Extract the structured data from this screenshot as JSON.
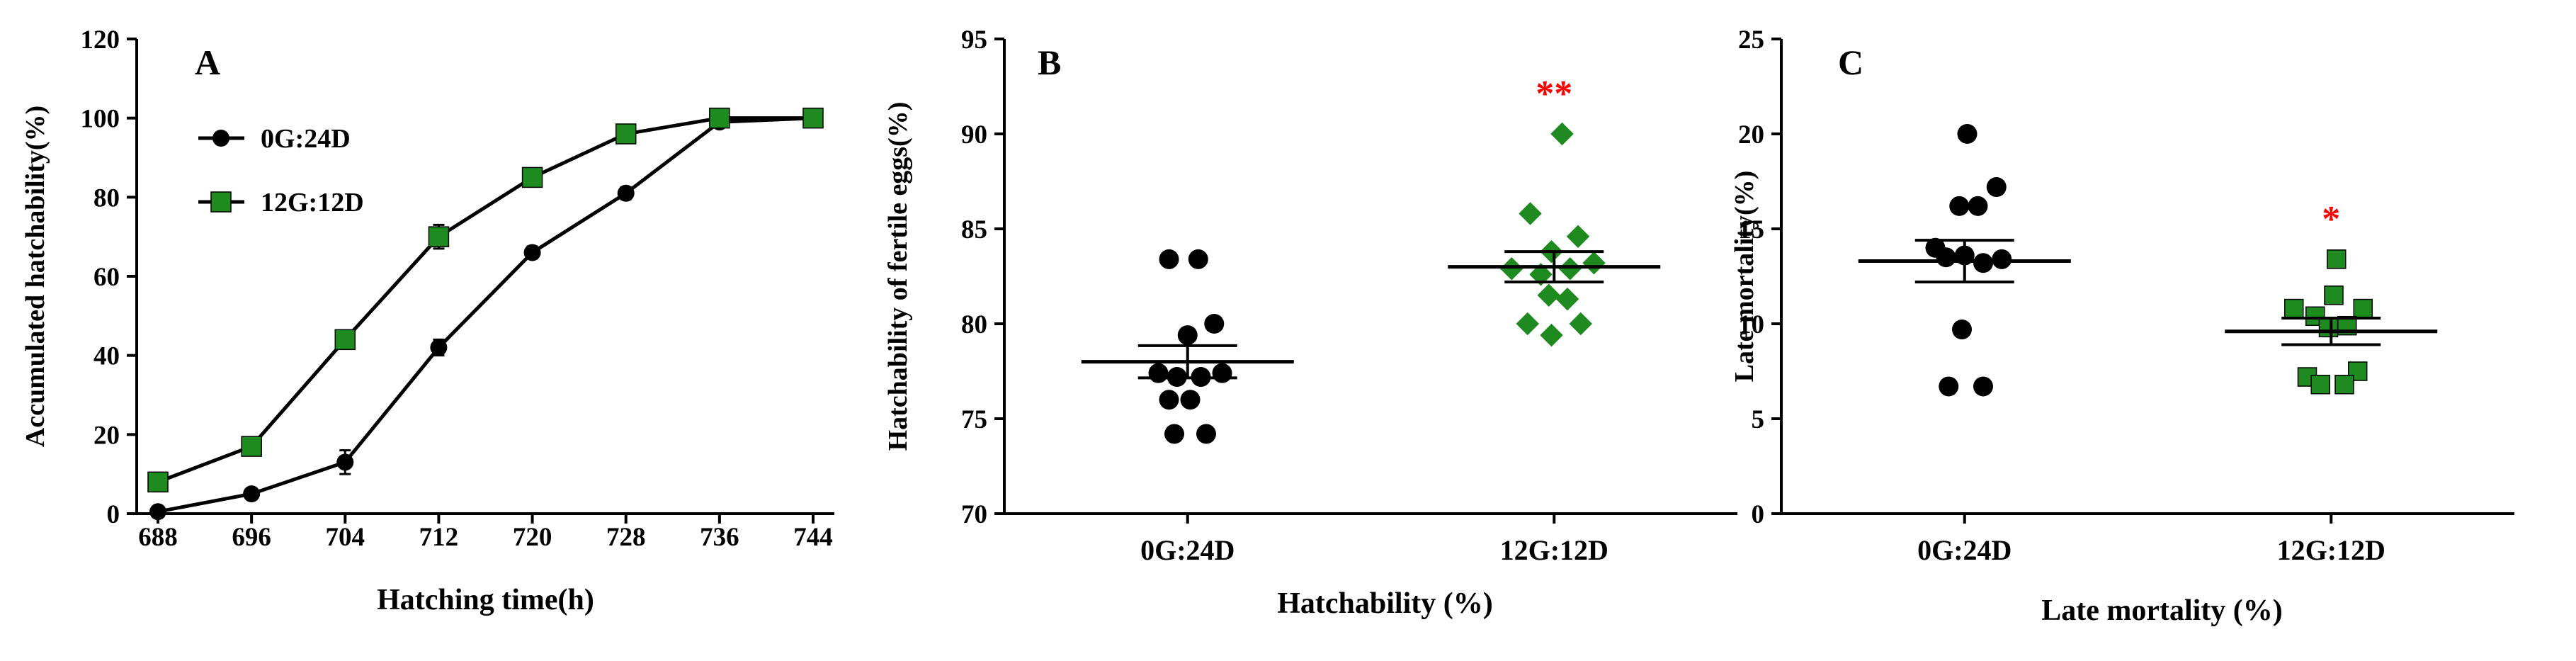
{
  "chart_data": [
    {
      "type": "line",
      "panel_label": "A",
      "xlabel": "Hatching time(h)",
      "ylabel": "Accumulated hatchability(%)",
      "ylim": [
        0,
        120
      ],
      "yticks": [
        "0",
        "20",
        "40",
        "60",
        "80",
        "100",
        "120"
      ],
      "categories": [
        "688",
        "696",
        "704",
        "712",
        "720",
        "728",
        "736",
        "744"
      ],
      "legend_position": "top-left",
      "series": [
        {
          "name": "0G:24D",
          "marker": "circle",
          "color": "#000000",
          "values": [
            0.5,
            5,
            13,
            42,
            66,
            81,
            99,
            100
          ],
          "errors": [
            0,
            1,
            3,
            2,
            1.5,
            1.5,
            1,
            0
          ]
        },
        {
          "name": "12G:12D",
          "marker": "square",
          "color": "#1f8a1f",
          "values": [
            8,
            17,
            44,
            70,
            85,
            96,
            100,
            100
          ],
          "errors": [
            0,
            1,
            2,
            3,
            2,
            1,
            0,
            0
          ]
        }
      ]
    },
    {
      "type": "scatter",
      "panel_label": "B",
      "xlabel": "Hatchability (%)",
      "ylabel": "Hatchability of fertile eggs(%)",
      "ylim": [
        70,
        95
      ],
      "yticks": [
        "70",
        "75",
        "80",
        "85",
        "90",
        "95"
      ],
      "categories": [
        "0G:24D",
        "12G:12D"
      ],
      "significance": [
        {
          "group": "12G:12D",
          "text": "**",
          "color": "#ff0000"
        }
      ],
      "series": [
        {
          "name": "0G:24D",
          "marker": "circle",
          "color": "#000000",
          "points": [
            {
              "dx": -0.35,
              "y": 83.4
            },
            {
              "dx": 0.2,
              "y": 83.4
            },
            {
              "dx": 0.5,
              "y": 80.0
            },
            {
              "dx": 0.0,
              "y": 79.4
            },
            {
              "dx": -0.55,
              "y": 77.4
            },
            {
              "dx": -0.2,
              "y": 77.2
            },
            {
              "dx": 0.25,
              "y": 77.2
            },
            {
              "dx": 0.65,
              "y": 77.4
            },
            {
              "dx": -0.35,
              "y": 76.0
            },
            {
              "dx": 0.05,
              "y": 76.0
            },
            {
              "dx": -0.25,
              "y": 74.2
            },
            {
              "dx": 0.35,
              "y": 74.2
            }
          ],
          "mean": 78.0,
          "sem": 0.85
        },
        {
          "name": "12G:12D",
          "marker": "diamond",
          "color": "#1f8a1f",
          "points": [
            {
              "dx": 0.15,
              "y": 90.0
            },
            {
              "dx": -0.45,
              "y": 85.8
            },
            {
              "dx": 0.45,
              "y": 84.6
            },
            {
              "dx": -0.05,
              "y": 83.8
            },
            {
              "dx": -0.8,
              "y": 82.9
            },
            {
              "dx": 0.75,
              "y": 83.2
            },
            {
              "dx": -0.25,
              "y": 82.6
            },
            {
              "dx": 0.3,
              "y": 82.9
            },
            {
              "dx": -0.1,
              "y": 81.5
            },
            {
              "dx": 0.25,
              "y": 81.3
            },
            {
              "dx": -0.5,
              "y": 80.0
            },
            {
              "dx": 0.5,
              "y": 80.0
            },
            {
              "dx": -0.05,
              "y": 79.4
            }
          ],
          "mean": 83.0,
          "sem": 0.8
        }
      ]
    },
    {
      "type": "scatter",
      "panel_label": "C",
      "xlabel": "Late mortality (%)",
      "ylabel": "Late mortality(%)",
      "ylim": [
        0,
        25
      ],
      "yticks": [
        "0",
        "5",
        "10",
        "15",
        "20",
        "25"
      ],
      "categories": [
        "0G:24D",
        "12G:12D"
      ],
      "significance": [
        {
          "group": "12G:12D",
          "text": "*",
          "color": "#ff0000"
        }
      ],
      "series": [
        {
          "name": "0G:24D",
          "marker": "circle",
          "color": "#000000",
          "points": [
            {
              "dx": 0.05,
              "y": 20.0
            },
            {
              "dx": 0.6,
              "y": 17.2
            },
            {
              "dx": -0.1,
              "y": 16.2
            },
            {
              "dx": 0.25,
              "y": 16.2
            },
            {
              "dx": -0.55,
              "y": 14.0
            },
            {
              "dx": -0.35,
              "y": 13.5
            },
            {
              "dx": 0.0,
              "y": 13.6
            },
            {
              "dx": 0.35,
              "y": 13.2
            },
            {
              "dx": 0.7,
              "y": 13.4
            },
            {
              "dx": -0.05,
              "y": 9.7
            },
            {
              "dx": -0.3,
              "y": 6.7
            },
            {
              "dx": 0.35,
              "y": 6.7
            }
          ],
          "mean": 13.3,
          "sem": 1.1
        },
        {
          "name": "12G:12D",
          "marker": "square",
          "color": "#1f8a1f",
          "points": [
            {
              "dx": 0.1,
              "y": 13.4
            },
            {
              "dx": 0.05,
              "y": 11.5
            },
            {
              "dx": -0.7,
              "y": 10.8
            },
            {
              "dx": -0.3,
              "y": 10.4
            },
            {
              "dx": 0.6,
              "y": 10.8
            },
            {
              "dx": -0.05,
              "y": 9.8
            },
            {
              "dx": 0.3,
              "y": 9.9
            },
            {
              "dx": -0.45,
              "y": 7.2
            },
            {
              "dx": 0.5,
              "y": 7.5
            },
            {
              "dx": -0.2,
              "y": 6.8
            },
            {
              "dx": 0.25,
              "y": 6.8
            }
          ],
          "mean": 9.6,
          "sem": 0.7
        }
      ]
    }
  ]
}
